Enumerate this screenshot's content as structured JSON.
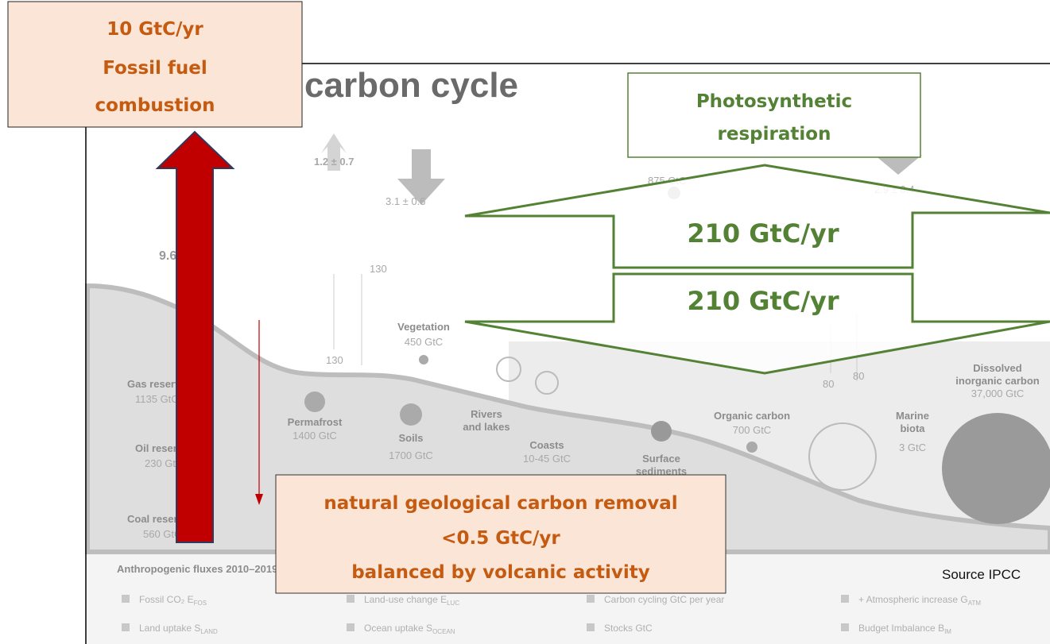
{
  "fossil_box": {
    "lines": [
      "10 GtC/yr",
      "Fossil fuel",
      "combustion"
    ]
  },
  "photo_box": {
    "lines": [
      "Photosynthetic",
      "respiration"
    ]
  },
  "flux_up": {
    "label": "210 GtC/yr"
  },
  "flux_down": {
    "label": "210 GtC/yr"
  },
  "geo_box": {
    "lines": [
      "natural geological carbon removal",
      "<0.5 GtC/yr",
      "balanced by volcanic activity"
    ]
  },
  "source": "Source IPCC",
  "background": {
    "title": "carbon cycle",
    "labels": {
      "luc": "1.2 ± 0.7",
      "land_uptake": "3.1 ± 0.6",
      "atmosphere": "875 GtC",
      "ocean_uptake": "2.9 ± 0.4",
      "fossil": "9.6 ± 0.5",
      "veg_up": "130",
      "veg_down": "130",
      "vegetation": "Vegetation",
      "vegetation_stock": "450 GtC",
      "gas": "Gas reserves",
      "gas_stock": "1135 GtC",
      "permafrost": "Permafrost",
      "permafrost_stock": "1400 GtC",
      "soils": "Soils",
      "soils_stock": "1700 GtC",
      "rivers_1": "Rivers",
      "rivers_2": "and lakes",
      "coasts": "Coasts",
      "coasts_stock": "10-45 GtC",
      "sediments_1": "Surface",
      "sediments_2": "sediments",
      "organic": "Organic carbon",
      "organic_stock": "700 GtC",
      "marine_1": "Marine",
      "marine_2": "biota",
      "marine_stock": "3 GtC",
      "dic_1": "Dissolved",
      "dic_2": "inorganic carbon",
      "dic_stock": "37,000 GtC",
      "ocean_up": "80",
      "ocean_down": "80",
      "oil": "Oil reserves",
      "oil_stock": "230 GtC",
      "coal": "Coal reserves",
      "coal_stock": "560 GtC",
      "fluxes_heading": "Anthropogenic fluxes 2010–2019"
    },
    "legend": [
      {
        "text": "Fossil CO₂ E",
        "sub": "FOS"
      },
      {
        "text": "Land uptake S",
        "sub": "LAND"
      },
      {
        "text": "Land-use change E",
        "sub": "LUC"
      },
      {
        "text": "Ocean uptake S",
        "sub": "OCEAN"
      },
      {
        "text": "Carbon cycling GtC per year",
        "sub": ""
      },
      {
        "text": "Stocks GtC",
        "sub": ""
      },
      {
        "text": "+ Atmospheric increase G",
        "sub": "ATM"
      },
      {
        "text": "Budget Imbalance B",
        "sub": "IM"
      }
    ]
  }
}
